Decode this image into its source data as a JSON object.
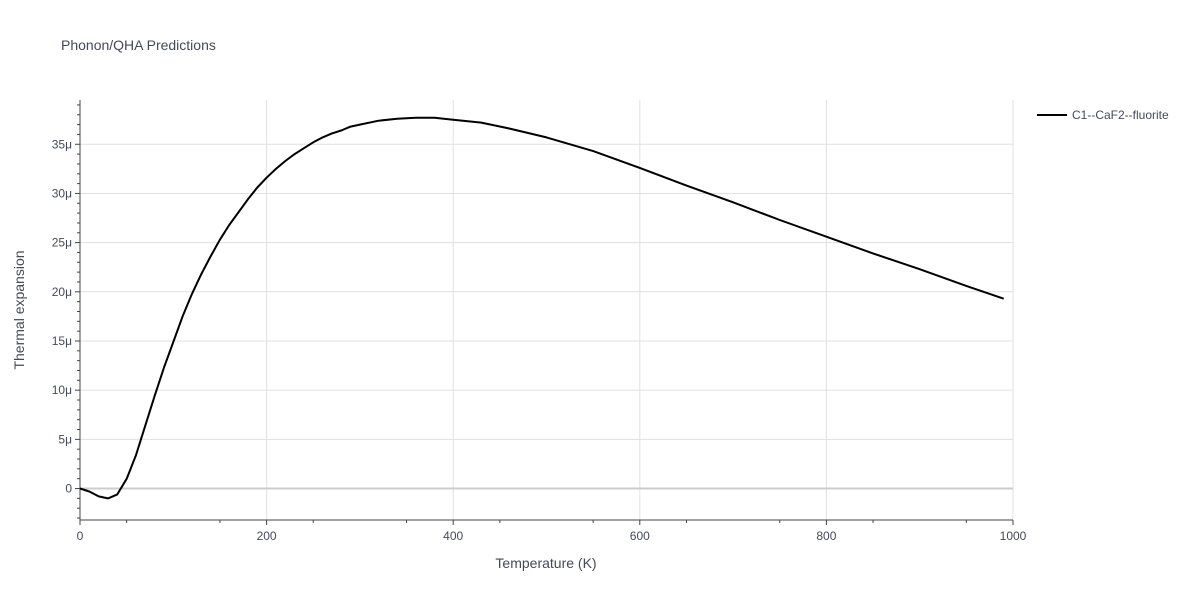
{
  "chart_data": {
    "type": "line",
    "title": "Phonon/QHA Predictions",
    "xlabel": "Temperature (K)",
    "ylabel": "Thermal expansion",
    "xlim": [
      0,
      1000
    ],
    "ylim": [
      -3.2e-06,
      3.95e-05
    ],
    "x_ticks": [
      {
        "value": 0,
        "label": "0"
      },
      {
        "value": 200,
        "label": "200"
      },
      {
        "value": 400,
        "label": "400"
      },
      {
        "value": 600,
        "label": "600"
      },
      {
        "value": 800,
        "label": "800"
      },
      {
        "value": 1000,
        "label": "1000"
      }
    ],
    "y_ticks": [
      {
        "value": 0,
        "label": "0"
      },
      {
        "value": 5e-06,
        "label": "5μ"
      },
      {
        "value": 1e-05,
        "label": "10μ"
      },
      {
        "value": 1.5e-05,
        "label": "15μ"
      },
      {
        "value": 2e-05,
        "label": "20μ"
      },
      {
        "value": 2.5e-05,
        "label": "25μ"
      },
      {
        "value": 3e-05,
        "label": "30μ"
      },
      {
        "value": 3.5e-05,
        "label": "35μ"
      }
    ],
    "grid": true,
    "legend_position": "top-right",
    "series": [
      {
        "name": "C1--CaF2--fluorite",
        "color": "#000000",
        "x": [
          0,
          10,
          20,
          30,
          40,
          50,
          60,
          70,
          80,
          90,
          100,
          110,
          120,
          130,
          140,
          150,
          160,
          170,
          180,
          190,
          200,
          210,
          220,
          230,
          240,
          250,
          260,
          270,
          280,
          290,
          300,
          320,
          340,
          360,
          380,
          400,
          430,
          460,
          500,
          550,
          600,
          650,
          700,
          750,
          800,
          850,
          900,
          950,
          990
        ],
        "y": [
          0,
          -3e-07,
          -8e-07,
          -1e-06,
          -6e-07,
          1e-06,
          3.4e-06,
          6.4e-06,
          9.4e-06,
          1.23e-05,
          1.49e-05,
          1.75e-05,
          1.98e-05,
          2.18e-05,
          2.36e-05,
          2.53e-05,
          2.68e-05,
          2.81e-05,
          2.94e-05,
          3.06e-05,
          3.16e-05,
          3.25e-05,
          3.33e-05,
          3.4e-05,
          3.46e-05,
          3.52e-05,
          3.57e-05,
          3.61e-05,
          3.64e-05,
          3.68e-05,
          3.7e-05,
          3.74e-05,
          3.76e-05,
          3.77e-05,
          3.77e-05,
          3.75e-05,
          3.72e-05,
          3.66e-05,
          3.57e-05,
          3.43e-05,
          3.26e-05,
          3.08e-05,
          2.91e-05,
          2.73e-05,
          2.56e-05,
          2.39e-05,
          2.23e-05,
          2.06e-05,
          1.93e-05
        ]
      }
    ]
  }
}
